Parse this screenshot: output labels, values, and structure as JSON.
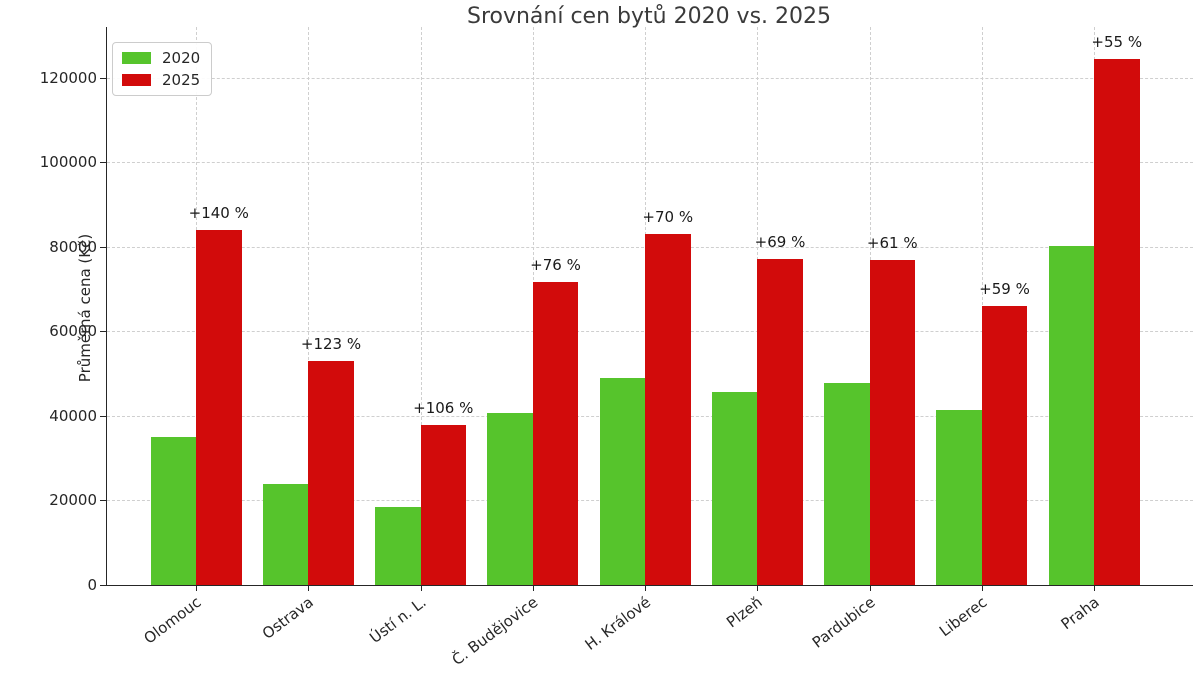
{
  "chart_data": {
    "type": "bar",
    "title": "Srovnání cen bytů 2020 vs. 2025",
    "xlabel": "",
    "ylabel": "Průměrná cena (Kč)",
    "categories": [
      "Olomouc",
      "Ostrava",
      "Ústí n. L.",
      "Č. Budějovice",
      "H. Králové",
      "Plzeň",
      "Pardubice",
      "Liberec",
      "Praha"
    ],
    "series": [
      {
        "name": "2020",
        "color": "#56c42c",
        "values": [
          35000,
          23800,
          18400,
          40800,
          48900,
          45700,
          47800,
          41400,
          80300
        ]
      },
      {
        "name": "2025",
        "color": "#d20b0b",
        "values": [
          84000,
          53000,
          37900,
          71700,
          83100,
          77100,
          76900,
          65900,
          124500
        ]
      }
    ],
    "bar_labels": [
      "+140 %",
      "+123 %",
      "+106 %",
      "+76 %",
      "+70 %",
      "+69 %",
      "+61 %",
      "+59 %",
      "+55 %"
    ],
    "ytick_labels": [
      "0",
      "20000",
      "40000",
      "60000",
      "80000",
      "100000",
      "120000"
    ],
    "yticks": [
      0,
      20000,
      40000,
      60000,
      80000,
      100000,
      120000
    ],
    "ylim": [
      0,
      132000
    ],
    "grid": true,
    "legend": {
      "position": "upper left",
      "entries": [
        "2020",
        "2025"
      ]
    }
  },
  "colors": {
    "grid": "#cfcfcf",
    "axis": "#262626",
    "title_text": "#3a3a3a",
    "tick_text": "#262626",
    "annotation_text": "#1a1a1a",
    "background": "#ffffff"
  }
}
